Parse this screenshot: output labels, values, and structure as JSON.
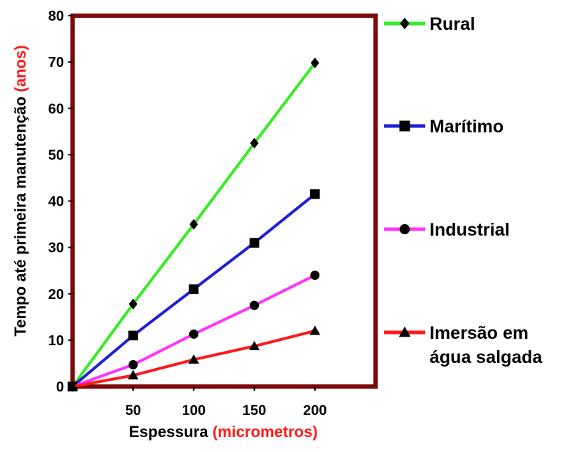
{
  "chart_data": {
    "type": "line",
    "xlabel": "Espessura",
    "xlabel_unit": "(micrometros)",
    "ylabel": "Tempo até primeira manutenção",
    "ylabel_unit": "(anos)",
    "x": [
      0,
      50,
      100,
      150,
      200
    ],
    "xticks": [
      "50",
      "100",
      "150",
      "200"
    ],
    "yticks": [
      "0",
      "10",
      "20",
      "30",
      "40",
      "50",
      "60",
      "70",
      "80"
    ],
    "xlim": [
      0,
      250
    ],
    "ylim": [
      0,
      80
    ],
    "grid": false,
    "legend_position": "right",
    "frame_color": "#7b0a0a",
    "series": [
      {
        "name": "Rural",
        "label_lines": [
          "Rural"
        ],
        "color": "#33ee22",
        "marker": "diamond",
        "values": [
          0,
          17.8,
          35,
          52.5,
          69.8
        ]
      },
      {
        "name": "Marítimo",
        "label_lines": [
          "Marítimo"
        ],
        "color": "#1f1fd6",
        "marker": "square",
        "values": [
          0,
          11,
          21,
          31,
          41.5
        ]
      },
      {
        "name": "Industrial",
        "label_lines": [
          "Industrial"
        ],
        "color": "#ff33ff",
        "marker": "circle",
        "values": [
          0,
          4.7,
          11.3,
          17.5,
          24
        ]
      },
      {
        "name": "Imersão em água salgada",
        "label_lines": [
          "Imersão em",
          "água salgada"
        ],
        "color": "#ff1a1a",
        "marker": "triangle",
        "values": [
          0,
          2.4,
          5.8,
          8.7,
          12
        ]
      }
    ]
  }
}
